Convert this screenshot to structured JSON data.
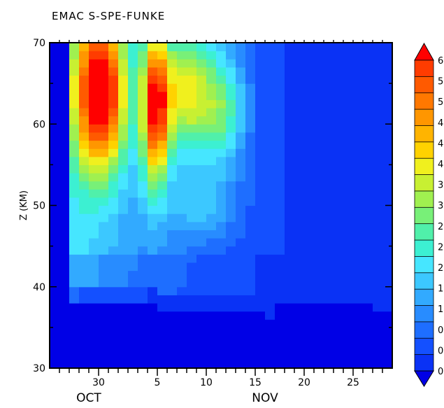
{
  "chart_data": {
    "type": "heatmap",
    "title": "EMAC S-SPE-FUNKE",
    "ylabel": "Z (KM)",
    "xlabel": "",
    "x_start": "Oct 25",
    "x_end": "Nov 29",
    "ylim": [
      30,
      70
    ],
    "y_ticks": [
      "30",
      "40",
      "50",
      "60",
      "70"
    ],
    "x_ticks": [
      {
        "label": "30",
        "day": 30
      },
      {
        "label": "5",
        "day": 36
      },
      {
        "label": "10",
        "day": 41
      },
      {
        "label": "15",
        "day": 46
      },
      {
        "label": "20",
        "day": 51
      },
      {
        "label": "25",
        "day": 56
      }
    ],
    "month_labels": [
      {
        "label": "OCT",
        "day": 29
      },
      {
        "label": "NOV",
        "day": 47
      }
    ],
    "colorbar": {
      "colors": [
        "#0000e6",
        "#0a32f5",
        "#1450ff",
        "#1e6eff",
        "#288cff",
        "#32aaff",
        "#3cc8ff",
        "#46e6ff",
        "#3cf0d2",
        "#50f0aa",
        "#78f078",
        "#a0f050",
        "#c8f032",
        "#f0f01e",
        "#ffd200",
        "#ffb400",
        "#ff9600",
        "#ff7800",
        "#ff5a00",
        "#ff3c00",
        "#ff0000"
      ],
      "labels": [
        "0",
        "0",
        "0",
        "1",
        "1",
        "2",
        "2",
        "2",
        "3",
        "3",
        "4",
        "4",
        "4",
        "5",
        "5",
        "6"
      ]
    },
    "grid": false
  }
}
